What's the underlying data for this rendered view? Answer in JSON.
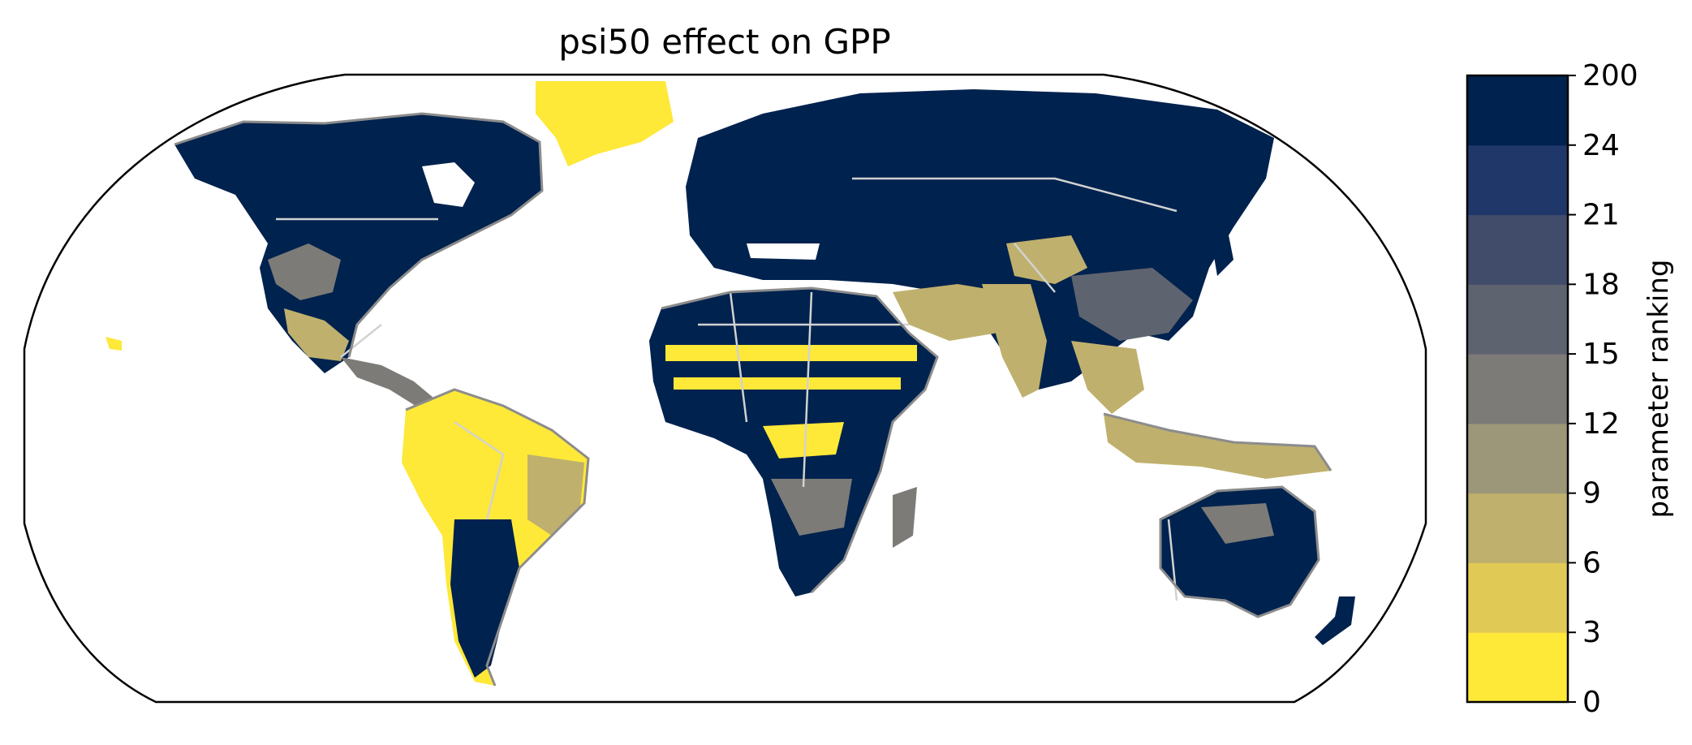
{
  "title": "psi50 effect on GPP",
  "colorbar": {
    "label": "parameter ranking",
    "ticks": [
      "0",
      "3",
      "6",
      "9",
      "12",
      "15",
      "18",
      "21",
      "24",
      "200"
    ],
    "colors": [
      "#fee838",
      "#e0ca55",
      "#bfb06d",
      "#9c9778",
      "#7c7b78",
      "#5e6370",
      "#414c6b",
      "#20376a",
      "#00224e"
    ]
  },
  "map": {
    "projection": "Robinson",
    "ocean_color": "#ffffff",
    "coastline_color": "#8c8c8c",
    "border_color": "#d2d2d2"
  }
}
